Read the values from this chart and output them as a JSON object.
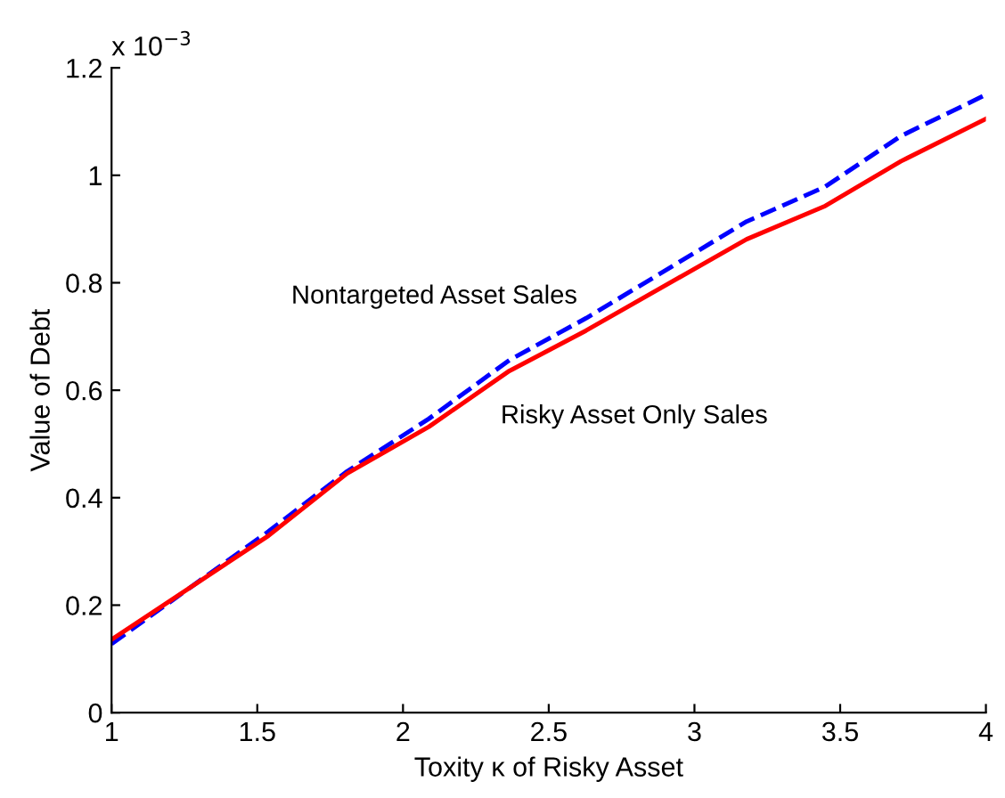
{
  "chart_data": {
    "type": "line",
    "xlabel": "Toxity κ of Risky Asset",
    "ylabel": "Value of Debt",
    "annotations": [
      "x 10$^{−3}$"
    ],
    "series": [
      {
        "name": "Nontargeted Asset Sales",
        "color": "#0000ff",
        "line_style": "dashed",
        "x": [
          1,
          1.538,
          1.808,
          2.089,
          2.365,
          2.628,
          3.179,
          3.449,
          3.708,
          4
        ],
        "values": [
          0.128,
          0.337,
          0.449,
          0.547,
          0.656,
          0.734,
          0.914,
          0.979,
          1.073,
          1.15
        ]
      },
      {
        "name": "Risky Asset Only Sales",
        "color": "#ff0000",
        "line_style": "solid",
        "x": [
          1,
          1.538,
          1.808,
          2.089,
          2.365,
          2.628,
          3.179,
          3.449,
          3.708,
          4
        ],
        "values": [
          0.136,
          0.329,
          0.445,
          0.532,
          0.636,
          0.711,
          0.881,
          0.943,
          1.026,
          1.105
        ]
      }
    ],
    "xlim": [
      1,
      4
    ],
    "ylim": [
      0,
      1.2
    ],
    "xticks": [
      1,
      1.5,
      2,
      2.5,
      3,
      3.5,
      4
    ],
    "yticks": [
      0,
      0.2,
      0.4,
      0.6,
      0.8,
      1,
      1.2
    ],
    "grid": false,
    "legend": false
  }
}
